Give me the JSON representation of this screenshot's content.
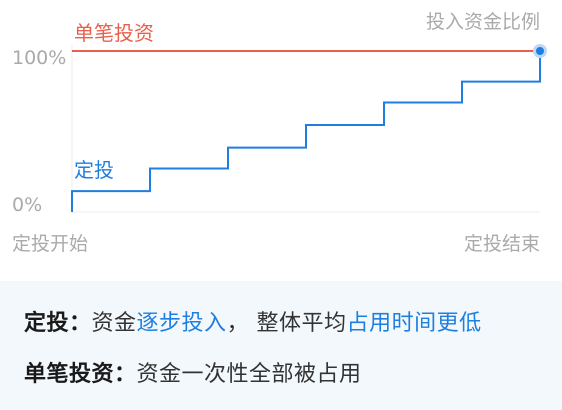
{
  "chart_data": {
    "type": "line",
    "title": "",
    "ylabel": "投入资金比例",
    "xlabel": "",
    "x_tick_labels": [
      "定投开始",
      "定投结束"
    ],
    "y_tick_labels": [
      "0%",
      "100%"
    ],
    "ylim": [
      0,
      100
    ],
    "xlim": [
      0,
      6
    ],
    "series": [
      {
        "name": "单笔投资",
        "color": "#e8604c",
        "style": "flat",
        "x": [
          0,
          6
        ],
        "values": [
          100,
          100
        ]
      },
      {
        "name": "定投",
        "color": "#1f7fe0",
        "style": "step",
        "x": [
          0,
          1,
          2,
          3,
          4,
          5,
          6
        ],
        "values": [
          13,
          27,
          40,
          54,
          68,
          81,
          100
        ]
      }
    ]
  },
  "info": {
    "line1": {
      "key": "定投",
      "sep": "：",
      "t1": "资金",
      "h1": "逐步投入",
      "t2": "， 整体平均",
      "h2": "占用时间更低"
    },
    "line2": {
      "key": "单笔投资",
      "sep": "：",
      "t1": "资金一次性全部被占用"
    }
  }
}
